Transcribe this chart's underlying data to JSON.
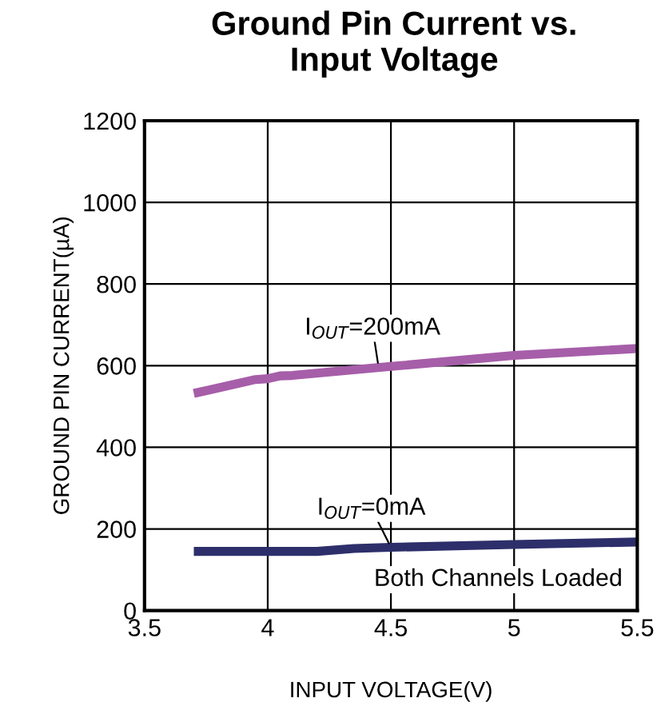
{
  "chart_data": {
    "type": "line",
    "title": "Ground Pin Current vs.\nInput Voltage",
    "xlabel": "INPUT VOLTAGE(V)",
    "ylabel": "GROUND PIN CURRENT(µA)",
    "series": [
      {
        "color": "#a65ea9",
        "x": [
          3.7,
          3.95,
          4.0,
          4.05,
          4.1,
          4.5,
          5.0,
          5.5
        ],
        "values": [
          532,
          566,
          568,
          575,
          576,
          598,
          625,
          642
        ]
      },
      {
        "color": "#2d2f6b",
        "x": [
          3.7,
          4.2,
          4.35,
          4.5,
          5.0,
          5.5
        ],
        "values": [
          145,
          145,
          152,
          155,
          162,
          168
        ]
      }
    ],
    "annotations": [
      {
        "text": "I$_{OUT}$=200mA",
        "x": 4.45,
        "y": 596
      },
      {
        "text": "I$_{OUT}$=0mA",
        "x": 4.5,
        "y": 155
      },
      "Both Channels Loaded"
    ],
    "xlim": [
      3.5,
      5.5
    ],
    "xticks": [
      3.5,
      4,
      4.5,
      5,
      5.5
    ],
    "ylim": [
      0,
      1200
    ],
    "yticks": [
      0,
      200,
      400,
      600,
      800,
      1000,
      1200
    ],
    "grid": true,
    "legend": false
  }
}
